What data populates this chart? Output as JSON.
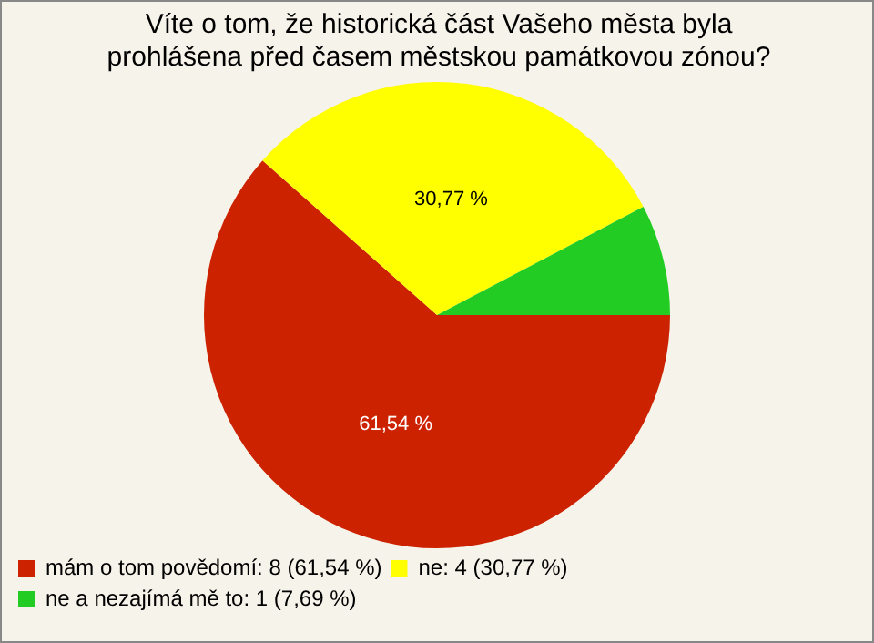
{
  "chart_data": {
    "type": "pie",
    "title": "Víte o tom, že historická část Vašeho města byla prohlášena před časem městskou památkovou zónou?",
    "categories": [
      "mám o tom povědomí: 8 (61,54 %)",
      "ne: 4 (30,77 %)",
      "ne a nezajímá mě to: 1 (7,69 %)"
    ],
    "values": [
      61.54,
      30.77,
      7.69
    ],
    "colors": [
      "#cc2200",
      "#ffff00",
      "#22cc22"
    ],
    "value_labels": [
      "61,54 %",
      "30,77 %",
      null
    ],
    "legend": "bottom left"
  }
}
